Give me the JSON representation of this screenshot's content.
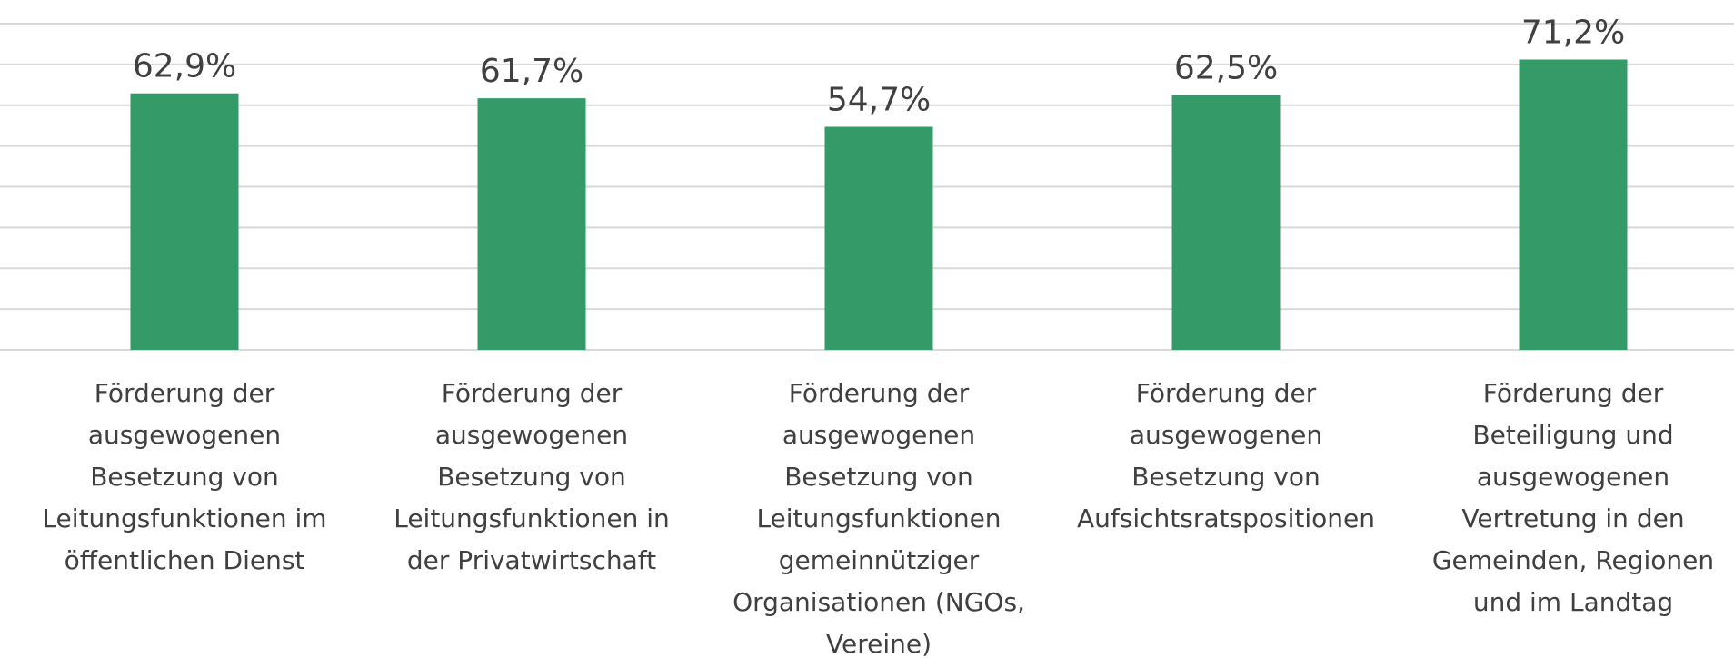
{
  "chart_data": {
    "type": "bar",
    "categories": [
      "Förderung der ausgewogenen Besetzung von Leitungsfunktionen im öffentlichen Dienst",
      "Förderung der ausgewogenen Besetzung von Leitungsfunktionen in der Privatwirtschaft",
      "Förderung der ausgewogenen Besetzung von Leitungsfunktionen gemeinnütziger Organisationen (NGOs, Vereine)",
      "Förderung der ausgewogenen Besetzung von Aufsichtsratspositionen",
      "Förderung der Beteiligung und ausgewogenen Vertretung in den Gemeinden, Regionen und im Landtag"
    ],
    "values": [
      62.9,
      61.7,
      54.7,
      62.5,
      71.2
    ],
    "value_labels": [
      "62,9%",
      "61,7%",
      "54,7%",
      "62,5%",
      "71,2%"
    ],
    "color": "#339a68",
    "ylim": [
      0,
      80
    ],
    "yticks": [
      0,
      10,
      20,
      30,
      40,
      50,
      60,
      70,
      80
    ],
    "grid": true
  }
}
